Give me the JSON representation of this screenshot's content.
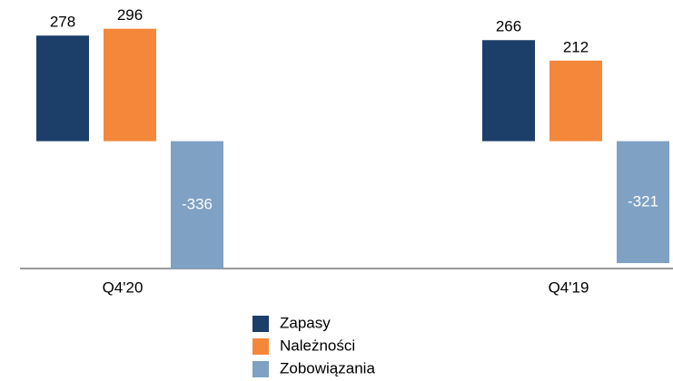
{
  "chart_data": {
    "type": "bar",
    "categories": [
      "Q4'20",
      "Q4'19"
    ],
    "series": [
      {
        "name": "Zapasy",
        "color": "#1c3f6a",
        "values": [
          278,
          266
        ]
      },
      {
        "name": "Należności",
        "color": "#f5873b",
        "values": [
          296,
          212
        ]
      },
      {
        "name": "Zobowiązania",
        "color": "#7ea1c4",
        "values": [
          -336,
          -321
        ]
      }
    ],
    "ylim": [
      -340,
      300
    ]
  }
}
